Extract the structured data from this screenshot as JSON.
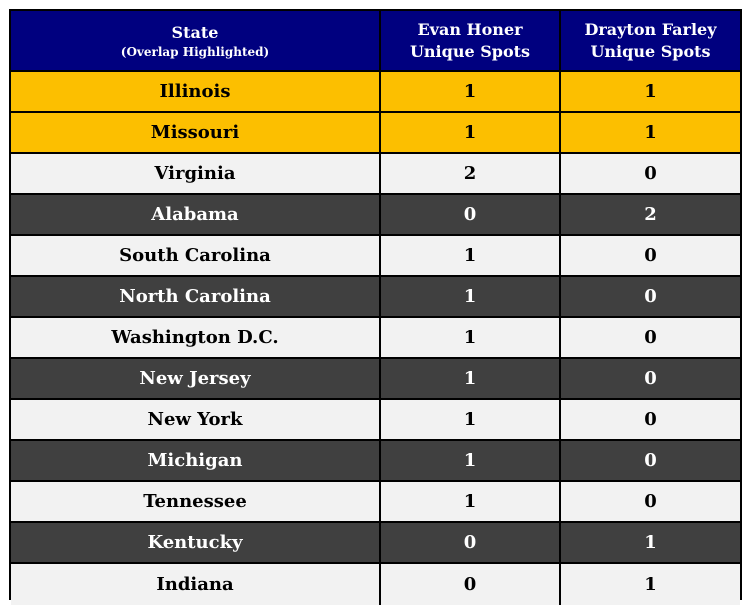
{
  "header": {
    "state": "State",
    "state_sub": "(Overlap Highlighted)",
    "evan_line1": "Evan Honer",
    "evan_line2": "Unique Spots",
    "drayton_line1": "Drayton Farley",
    "drayton_line2": "Unique Spots"
  },
  "colors": {
    "header_bg": "#00007f",
    "highlight": "#fcbf00",
    "light_row": "#f2f2f2",
    "dark_row": "#404040"
  },
  "rows": [
    {
      "state": "Illinois",
      "evan": "1",
      "drayton": "1",
      "style": "highlight"
    },
    {
      "state": "Missouri",
      "evan": "1",
      "drayton": "1",
      "style": "highlight"
    },
    {
      "state": "Virginia",
      "evan": "2",
      "drayton": "0",
      "style": "light"
    },
    {
      "state": "Alabama",
      "evan": "0",
      "drayton": "2",
      "style": "dark"
    },
    {
      "state": "South Carolina",
      "evan": "1",
      "drayton": "0",
      "style": "light"
    },
    {
      "state": "North Carolina",
      "evan": "1",
      "drayton": "0",
      "style": "dark"
    },
    {
      "state": "Washington D.C.",
      "evan": "1",
      "drayton": "0",
      "style": "light"
    },
    {
      "state": "New Jersey",
      "evan": "1",
      "drayton": "0",
      "style": "dark"
    },
    {
      "state": "New York",
      "evan": "1",
      "drayton": "0",
      "style": "light"
    },
    {
      "state": "Michigan",
      "evan": "1",
      "drayton": "0",
      "style": "dark"
    },
    {
      "state": "Tennessee",
      "evan": "1",
      "drayton": "0",
      "style": "light"
    },
    {
      "state": "Kentucky",
      "evan": "0",
      "drayton": "1",
      "style": "dark"
    },
    {
      "state": "Indiana",
      "evan": "0",
      "drayton": "1",
      "style": "light"
    }
  ]
}
